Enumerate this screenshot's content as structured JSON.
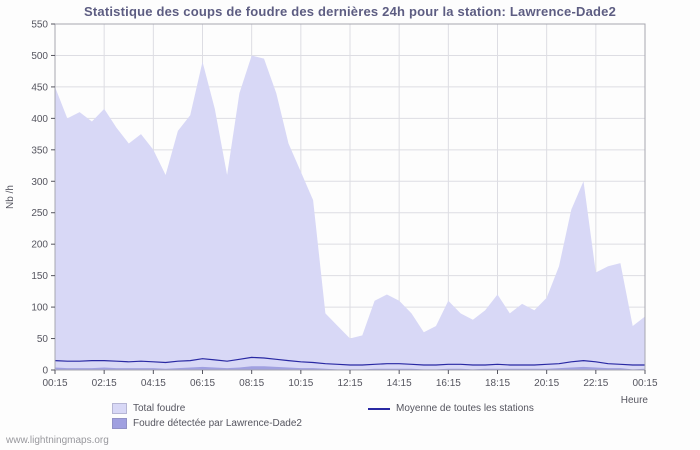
{
  "page": {
    "watermark": "www.lightningmaps.org"
  },
  "chart_data": {
    "type": "area",
    "title": "Statistique des coups de foudre des dernières 24h pour la station: Lawrence-Dade2",
    "xlabel": "Heure",
    "ylabel": "Nb /h",
    "ylim": [
      0,
      550
    ],
    "y_tick_step": 50,
    "grid": true,
    "legend_position": "bottom",
    "x_tick_every": 4,
    "x_tick_labels": [
      "00:15",
      "02:15",
      "04:15",
      "06:15",
      "08:15",
      "10:15",
      "12:15",
      "14:15",
      "16:15",
      "18:15",
      "20:15",
      "22:15",
      "00:15"
    ],
    "x": [
      "00:15",
      "00:45",
      "01:15",
      "01:45",
      "02:15",
      "02:45",
      "03:15",
      "03:45",
      "04:15",
      "04:45",
      "05:15",
      "05:45",
      "06:15",
      "06:45",
      "07:15",
      "07:45",
      "08:15",
      "08:45",
      "09:15",
      "09:45",
      "10:15",
      "10:45",
      "11:15",
      "11:45",
      "12:15",
      "12:45",
      "13:15",
      "13:45",
      "14:15",
      "14:45",
      "15:15",
      "15:45",
      "16:15",
      "16:45",
      "17:15",
      "17:45",
      "18:15",
      "18:45",
      "19:15",
      "19:45",
      "20:15",
      "20:45",
      "21:15",
      "21:45",
      "22:15",
      "22:45",
      "23:15",
      "23:45",
      "00:15"
    ],
    "series": [
      {
        "name": "Total foudre",
        "kind": "area",
        "color": "#d8d8f6",
        "values": [
          450,
          400,
          410,
          395,
          415,
          385,
          360,
          375,
          350,
          310,
          380,
          405,
          490,
          415,
          310,
          440,
          500,
          495,
          440,
          360,
          315,
          270,
          90,
          70,
          50,
          55,
          110,
          120,
          110,
          90,
          60,
          70,
          110,
          90,
          80,
          95,
          120,
          90,
          105,
          95,
          115,
          165,
          255,
          300,
          155,
          165,
          170,
          70,
          85
        ]
      },
      {
        "name": "Foudre détectée par Lawrence-Dade2",
        "kind": "area",
        "color": "#a0a0e0",
        "values": [
          4,
          3,
          3,
          3,
          4,
          3,
          3,
          3,
          3,
          2,
          3,
          4,
          5,
          4,
          3,
          4,
          6,
          6,
          5,
          4,
          3,
          3,
          2,
          1,
          1,
          1,
          2,
          2,
          2,
          2,
          1,
          1,
          2,
          2,
          1,
          2,
          2,
          2,
          2,
          2,
          2,
          3,
          4,
          5,
          4,
          3,
          3,
          1,
          2
        ]
      },
      {
        "name": "Moyenne de toutes les stations",
        "kind": "line",
        "color": "#2929a3",
        "values": [
          15,
          14,
          14,
          15,
          15,
          14,
          13,
          14,
          13,
          12,
          14,
          15,
          18,
          16,
          14,
          17,
          20,
          19,
          17,
          15,
          13,
          12,
          10,
          9,
          8,
          8,
          9,
          10,
          10,
          9,
          8,
          8,
          9,
          9,
          8,
          8,
          9,
          8,
          8,
          8,
          9,
          10,
          13,
          15,
          13,
          10,
          9,
          8,
          8
        ]
      }
    ],
    "colors": {
      "grid": "#dddde3",
      "plot_border": "#a6a6b0",
      "axis_text": "#55555f",
      "title": "#5d5d82"
    }
  }
}
